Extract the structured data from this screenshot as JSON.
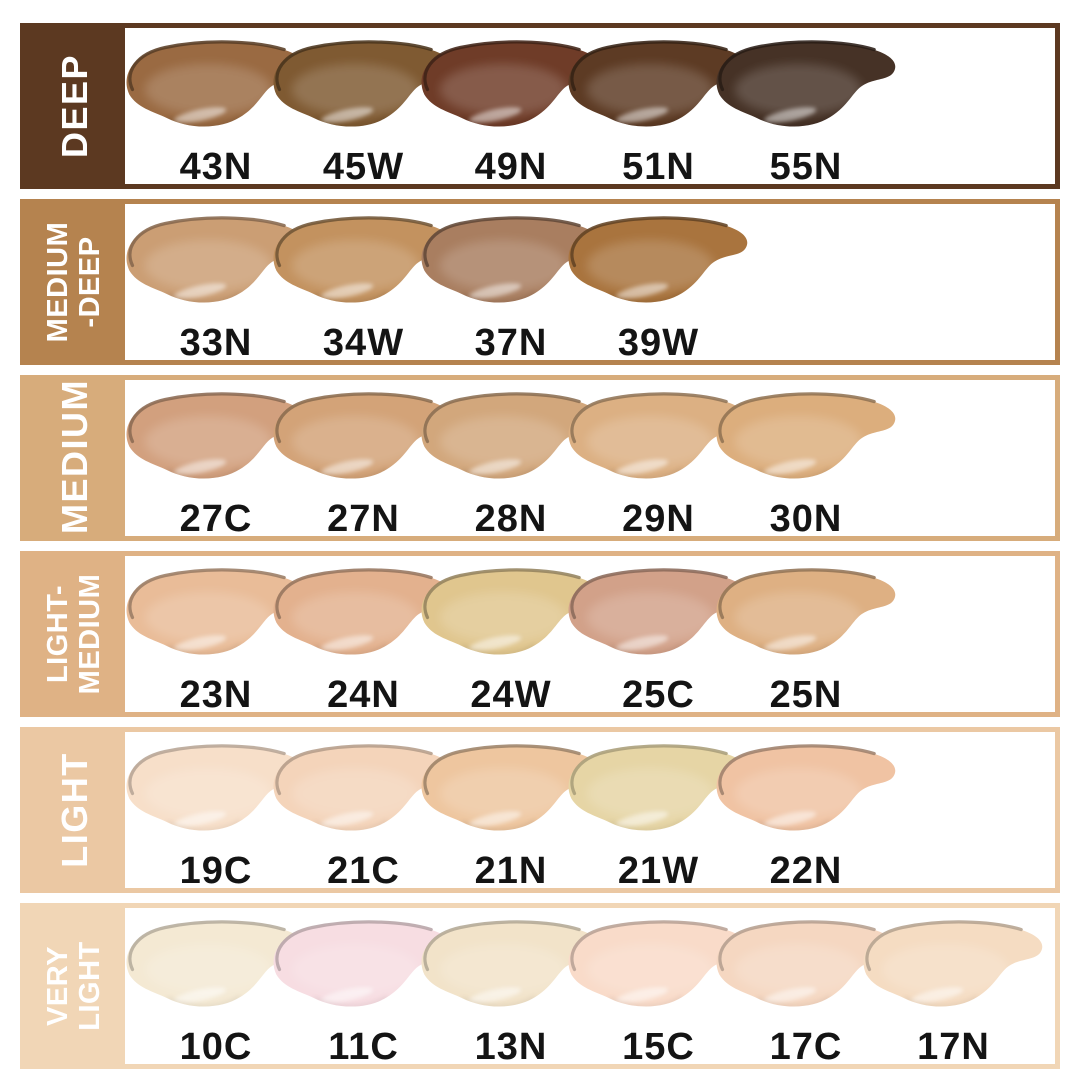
{
  "page": {
    "background": "#ffffff",
    "group_label_text_color": "#ffffff",
    "shade_code_text_color": "#141414"
  },
  "rows": [
    {
      "name": "deep",
      "label": "DEEP",
      "label_lines": [
        "DEEP"
      ],
      "accent": "#5c3921",
      "shades": [
        {
          "code": "43N",
          "color": "#9a6a42"
        },
        {
          "code": "45W",
          "color": "#7f5a32"
        },
        {
          "code": "49N",
          "color": "#6f3c28"
        },
        {
          "code": "51N",
          "color": "#5d3b24"
        },
        {
          "code": "55N",
          "color": "#463226"
        }
      ]
    },
    {
      "name": "medium-deep",
      "label": "MEDIUM-DEEP",
      "label_lines": [
        "MEDIUM",
        "-DEEP"
      ],
      "accent": "#b5834f",
      "shades": [
        {
          "code": "33N",
          "color": "#cb9e74"
        },
        {
          "code": "34W",
          "color": "#c3925f"
        },
        {
          "code": "37N",
          "color": "#a97e60"
        },
        {
          "code": "39W",
          "color": "#a9743e"
        }
      ]
    },
    {
      "name": "medium",
      "label": "MEDIUM",
      "label_lines": [
        "MEDIUM"
      ],
      "accent": "#d7ac7b",
      "shades": [
        {
          "code": "27C",
          "color": "#d2a07e"
        },
        {
          "code": "27N",
          "color": "#d3a378"
        },
        {
          "code": "28N",
          "color": "#d2a77c"
        },
        {
          "code": "29N",
          "color": "#dcb083"
        },
        {
          "code": "30N",
          "color": "#dcae7d"
        }
      ]
    },
    {
      "name": "light-medium",
      "label": "LIGHT-MEDIUM",
      "label_lines": [
        "LIGHT-",
        "MEDIUM"
      ],
      "accent": "#dfb285",
      "shades": [
        {
          "code": "23N",
          "color": "#e9bc98"
        },
        {
          "code": "24N",
          "color": "#e3b18e"
        },
        {
          "code": "24W",
          "color": "#e0c68e"
        },
        {
          "code": "25C",
          "color": "#d2a189"
        },
        {
          "code": "25N",
          "color": "#deb083"
        }
      ]
    },
    {
      "name": "light",
      "label": "LIGHT",
      "label_lines": [
        "LIGHT"
      ],
      "accent": "#ebc8a3",
      "shades": [
        {
          "code": "19C",
          "color": "#f7dfc9"
        },
        {
          "code": "21C",
          "color": "#f4d4ba"
        },
        {
          "code": "21N",
          "color": "#eec69f"
        },
        {
          "code": "21W",
          "color": "#e6d5a5"
        },
        {
          "code": "22N",
          "color": "#f0c3a3"
        }
      ]
    },
    {
      "name": "very-light",
      "label": "VERY LIGHT",
      "label_lines": [
        "VERY",
        "LIGHT"
      ],
      "accent": "#f1d6b6",
      "shades": [
        {
          "code": "10C",
          "color": "#f4e9d3"
        },
        {
          "code": "11C",
          "color": "#f7dde2"
        },
        {
          "code": "13N",
          "color": "#f2e3c9"
        },
        {
          "code": "15C",
          "color": "#f9dbc9"
        },
        {
          "code": "17C",
          "color": "#f5d7c1"
        },
        {
          "code": "17N",
          "color": "#f5dcc2"
        }
      ]
    }
  ],
  "chart_data": {
    "type": "table",
    "description": "Foundation shade swatch chart grouped by depth ranges, darkest to lightest",
    "categories": [
      "DEEP",
      "MEDIUM-DEEP",
      "MEDIUM",
      "LIGHT-MEDIUM",
      "LIGHT",
      "VERY LIGHT"
    ],
    "series": [
      {
        "name": "DEEP",
        "shade_codes": [
          "43N",
          "45W",
          "49N",
          "51N",
          "55N"
        ],
        "swatch_hex": [
          "#9a6a42",
          "#7f5a32",
          "#6f3c28",
          "#5d3b24",
          "#463226"
        ]
      },
      {
        "name": "MEDIUM-DEEP",
        "shade_codes": [
          "33N",
          "34W",
          "37N",
          "39W"
        ],
        "swatch_hex": [
          "#cb9e74",
          "#c3925f",
          "#a97e60",
          "#a9743e"
        ]
      },
      {
        "name": "MEDIUM",
        "shade_codes": [
          "27C",
          "27N",
          "28N",
          "29N",
          "30N"
        ],
        "swatch_hex": [
          "#d2a07e",
          "#d3a378",
          "#d2a77c",
          "#dcb083",
          "#dcae7d"
        ]
      },
      {
        "name": "LIGHT-MEDIUM",
        "shade_codes": [
          "23N",
          "24N",
          "24W",
          "25C",
          "25N"
        ],
        "swatch_hex": [
          "#e9bc98",
          "#e3b18e",
          "#e0c68e",
          "#d2a189",
          "#deb083"
        ]
      },
      {
        "name": "LIGHT",
        "shade_codes": [
          "19C",
          "21C",
          "21N",
          "21W",
          "22N"
        ],
        "swatch_hex": [
          "#f7dfc9",
          "#f4d4ba",
          "#eec69f",
          "#e6d5a5",
          "#f0c3a3"
        ]
      },
      {
        "name": "VERY LIGHT",
        "shade_codes": [
          "10C",
          "11C",
          "13N",
          "15C",
          "17C",
          "17N"
        ],
        "swatch_hex": [
          "#f4e9d3",
          "#f7dde2",
          "#f2e3c9",
          "#f9dbc9",
          "#f5d7c1",
          "#f5dcc2"
        ]
      }
    ],
    "layout_hints": {
      "row_labels_position": "left",
      "row_border": "solid, same color as row label bar",
      "swatch_style": "cosmetic smear with shade code below"
    }
  }
}
